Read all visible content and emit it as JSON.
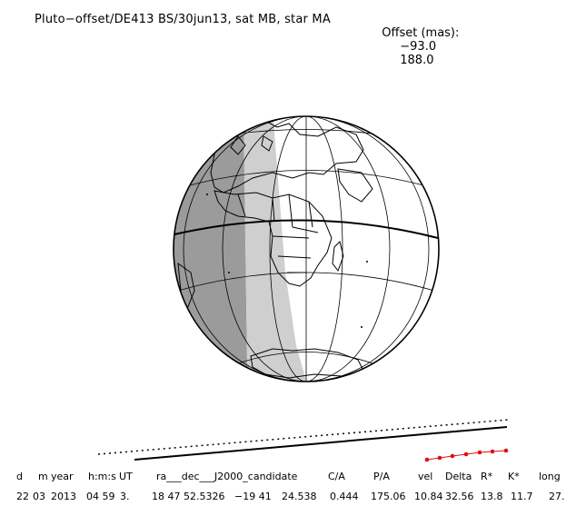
{
  "header": {
    "title": "Pluto−offset/DE413 BS/30jun13, sat MB, star MA",
    "offset_label": "Offset (mas):",
    "offset_x": "−93.0",
    "offset_y": "188.0"
  },
  "table": {
    "headers": [
      "d",
      "m",
      "year",
      "h:m:s",
      "UT",
      "ra___dec___J2000_candidate",
      "C/A",
      "P/A",
      "vel",
      "Delta",
      "R*",
      "K*",
      "long"
    ],
    "values": [
      "22",
      "03",
      "2013",
      "04 59",
      "3.",
      "18 47 52.5326",
      "−19 41",
      "24.538",
      "0.444",
      "175.06",
      "10.84",
      "32.56",
      "13.8",
      "11.7",
      "27."
    ]
  },
  "colors": {
    "night": "#9b9b9b",
    "twilight": "#cfcfcf",
    "day": "#ffffff",
    "ink": "#000000",
    "marker": "#e01010"
  }
}
